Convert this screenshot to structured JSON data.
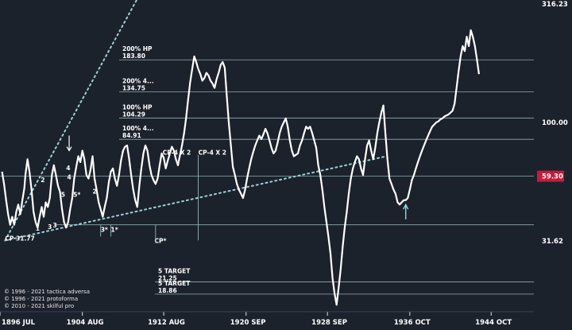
{
  "colors": {
    "background": "#1c222c",
    "price_line": "#ffffff",
    "level_line": "#a7c3c8",
    "trend_line": "#9fcfd6",
    "accent_badge": "#c41c3c",
    "arrow_cyan": "#8fd6e0"
  },
  "chart_data": {
    "type": "line",
    "title": "",
    "xlabel": "",
    "ylabel": "",
    "y_scale": "log",
    "ylim": [
      16,
      316.23
    ],
    "x_range": [
      1896.5,
      1949
    ],
    "x_ticks": [
      {
        "label": "1896 JUL",
        "value": 1896.5
      },
      {
        "label": "1904 AUG",
        "value": 1904.6
      },
      {
        "label": "1912 AUG",
        "value": 1912.6
      },
      {
        "label": "1920 SEP",
        "value": 1920.7
      },
      {
        "label": "1928 SEP",
        "value": 1928.7
      },
      {
        "label": "1936 OCT",
        "value": 1936.8
      },
      {
        "label": "1944 OCT",
        "value": 1944.8
      }
    ],
    "y_ticks": [
      {
        "label": "316.23",
        "value": 316.23
      },
      {
        "label": "100.00",
        "value": 100.0
      },
      {
        "label": "31.62",
        "value": 31.62
      }
    ],
    "current_value": {
      "label": "59.30",
      "value": 59.3
    },
    "levels": [
      {
        "name": "200% HP",
        "value": 183.8,
        "label": "183.80"
      },
      {
        "name": "200% 4...",
        "value": 134.75,
        "label": "134.75"
      },
      {
        "name": "100% HP",
        "value": 104.29,
        "label": "104.29"
      },
      {
        "name": "100% 4...",
        "value": 84.91,
        "label": "84.91"
      },
      {
        "name": "",
        "value": 59.3,
        "label": ""
      },
      {
        "name": "",
        "value": 37.0,
        "label": ""
      },
      {
        "name": "5 TARGET",
        "value": 21.25,
        "label": "21.25"
      },
      {
        "name": "5 TARGET",
        "value": 18.86,
        "label": "18.86"
      }
    ],
    "annotations": [
      {
        "text": "CP 31.77",
        "x": 1897.0,
        "y": 31.77
      },
      {
        "text": "CP*",
        "x": 1911.7,
        "y": 31.0
      },
      {
        "text": "CP-4 X 2",
        "x": 1916.0,
        "y": 73.0
      },
      {
        "text": "CP-4 X 2",
        "x": 1912.5,
        "y": 73.0
      },
      {
        "text": "1",
        "x": 1900.0,
        "y": 35.0
      },
      {
        "text": "2",
        "x": 1900.5,
        "y": 56.0
      },
      {
        "text": "3",
        "x": 1901.2,
        "y": 35.5
      },
      {
        "text": "3",
        "x": 1901.7,
        "y": 36.0
      },
      {
        "text": "4",
        "x": 1903.0,
        "y": 63.0
      },
      {
        "text": "4",
        "x": 1903.1,
        "y": 57.5
      },
      {
        "text": "5",
        "x": 1902.5,
        "y": 48.5
      },
      {
        "text": "5*",
        "x": 1903.7,
        "y": 48.5
      },
      {
        "text": "2",
        "x": 1905.6,
        "y": 50.0
      },
      {
        "text": "3*",
        "x": 1906.4,
        "y": 34.5
      },
      {
        "text": "1*",
        "x": 1907.4,
        "y": 34.5
      }
    ],
    "series": [
      {
        "values": [
          [
            1896.7,
            62
          ],
          [
            1896.9,
            55
          ],
          [
            1897.1,
            47
          ],
          [
            1897.3,
            41
          ],
          [
            1897.5,
            37
          ],
          [
            1897.7,
            40
          ],
          [
            1897.9,
            37
          ],
          [
            1898.1,
            42
          ],
          [
            1898.3,
            45
          ],
          [
            1898.5,
            41
          ],
          [
            1898.7,
            47
          ],
          [
            1898.9,
            53
          ],
          [
            1899.0,
            60
          ],
          [
            1899.2,
            70
          ],
          [
            1899.4,
            62
          ],
          [
            1899.6,
            52
          ],
          [
            1899.8,
            42
          ],
          [
            1900.0,
            38
          ],
          [
            1900.2,
            36
          ],
          [
            1900.4,
            40
          ],
          [
            1900.6,
            44
          ],
          [
            1900.8,
            40
          ],
          [
            1901.0,
            46
          ],
          [
            1901.2,
            44
          ],
          [
            1901.4,
            48
          ],
          [
            1901.6,
            60
          ],
          [
            1901.8,
            66
          ],
          [
            1902.0,
            60
          ],
          [
            1902.2,
            54
          ],
          [
            1902.4,
            51
          ],
          [
            1902.6,
            43
          ],
          [
            1902.8,
            38
          ],
          [
            1903.0,
            36
          ],
          [
            1903.2,
            38
          ],
          [
            1903.4,
            43
          ],
          [
            1903.6,
            48
          ],
          [
            1903.8,
            58
          ],
          [
            1904.0,
            65
          ],
          [
            1904.2,
            72
          ],
          [
            1904.4,
            68
          ],
          [
            1904.6,
            76
          ],
          [
            1904.8,
            70
          ],
          [
            1905.0,
            60
          ],
          [
            1905.2,
            58
          ],
          [
            1905.4,
            63
          ],
          [
            1905.6,
            72
          ],
          [
            1905.8,
            58
          ],
          [
            1906.0,
            52
          ],
          [
            1906.2,
            46
          ],
          [
            1906.4,
            43
          ],
          [
            1906.6,
            40
          ],
          [
            1906.8,
            44
          ],
          [
            1907.0,
            48
          ],
          [
            1907.2,
            56
          ],
          [
            1907.4,
            62
          ],
          [
            1907.6,
            64
          ],
          [
            1907.8,
            58
          ],
          [
            1908.0,
            54
          ],
          [
            1908.2,
            60
          ],
          [
            1908.4,
            69
          ],
          [
            1908.6,
            76
          ],
          [
            1908.8,
            79
          ],
          [
            1909.0,
            80
          ],
          [
            1909.2,
            70
          ],
          [
            1909.4,
            60
          ],
          [
            1909.6,
            52
          ],
          [
            1909.8,
            47
          ],
          [
            1910.0,
            44
          ],
          [
            1910.2,
            54
          ],
          [
            1910.4,
            64
          ],
          [
            1910.6,
            74
          ],
          [
            1910.8,
            80
          ],
          [
            1911.0,
            76
          ],
          [
            1911.2,
            66
          ],
          [
            1911.4,
            60
          ],
          [
            1911.6,
            57
          ],
          [
            1911.8,
            55
          ],
          [
            1912.0,
            58
          ],
          [
            1912.2,
            66
          ],
          [
            1912.4,
            74
          ],
          [
            1912.6,
            71
          ],
          [
            1912.8,
            64
          ],
          [
            1913.0,
            69
          ],
          [
            1913.2,
            74
          ],
          [
            1913.4,
            79
          ],
          [
            1913.6,
            76
          ],
          [
            1913.8,
            70
          ],
          [
            1914.0,
            66
          ],
          [
            1914.2,
            73
          ],
          [
            1914.4,
            80
          ],
          [
            1914.6,
            90
          ],
          [
            1914.8,
            104
          ],
          [
            1915.0,
            125
          ],
          [
            1915.2,
            148
          ],
          [
            1915.4,
            168
          ],
          [
            1915.6,
            190
          ],
          [
            1915.8,
            180
          ],
          [
            1916.0,
            168
          ],
          [
            1916.2,
            160
          ],
          [
            1916.4,
            150
          ],
          [
            1916.6,
            154
          ],
          [
            1916.8,
            162
          ],
          [
            1917.0,
            158
          ],
          [
            1917.2,
            150
          ],
          [
            1917.4,
            146
          ],
          [
            1917.6,
            140
          ],
          [
            1917.8,
            152
          ],
          [
            1918.0,
            162
          ],
          [
            1918.2,
            175
          ],
          [
            1918.4,
            180
          ],
          [
            1918.6,
            170
          ],
          [
            1918.8,
            130
          ],
          [
            1919.0,
            100
          ],
          [
            1919.2,
            80
          ],
          [
            1919.4,
            65
          ],
          [
            1919.6,
            60
          ],
          [
            1919.8,
            55
          ],
          [
            1920.0,
            52
          ],
          [
            1920.2,
            50
          ],
          [
            1920.4,
            48
          ],
          [
            1920.6,
            52
          ],
          [
            1920.8,
            58
          ],
          [
            1921.0,
            64
          ],
          [
            1921.2,
            70
          ],
          [
            1921.4,
            75
          ],
          [
            1921.6,
            80
          ],
          [
            1921.8,
            84
          ],
          [
            1922.0,
            88
          ],
          [
            1922.2,
            85
          ],
          [
            1922.4,
            89
          ],
          [
            1922.6,
            94
          ],
          [
            1922.8,
            90
          ],
          [
            1923.0,
            84
          ],
          [
            1923.2,
            78
          ],
          [
            1923.4,
            74
          ],
          [
            1923.6,
            76
          ],
          [
            1923.8,
            82
          ],
          [
            1924.0,
            90
          ],
          [
            1924.2,
            96
          ],
          [
            1924.4,
            100
          ],
          [
            1924.6,
            104
          ],
          [
            1924.8,
            96
          ],
          [
            1925.0,
            84
          ],
          [
            1925.2,
            76
          ],
          [
            1925.4,
            72
          ],
          [
            1925.6,
            73
          ],
          [
            1925.8,
            74
          ],
          [
            1926.0,
            80
          ],
          [
            1926.2,
            84
          ],
          [
            1926.4,
            90
          ],
          [
            1926.6,
            96
          ],
          [
            1926.8,
            94
          ],
          [
            1927.0,
            96
          ],
          [
            1927.2,
            90
          ],
          [
            1927.4,
            84
          ],
          [
            1927.6,
            78
          ],
          [
            1927.8,
            66
          ],
          [
            1928.0,
            60
          ],
          [
            1928.2,
            52
          ],
          [
            1928.4,
            44
          ],
          [
            1928.6,
            38
          ],
          [
            1928.8,
            33
          ],
          [
            1929.0,
            28
          ],
          [
            1929.2,
            22
          ],
          [
            1929.4,
            19
          ],
          [
            1929.6,
            17
          ],
          [
            1929.8,
            20
          ],
          [
            1930.0,
            24
          ],
          [
            1930.2,
            30
          ],
          [
            1930.4,
            36
          ],
          [
            1930.6,
            42
          ],
          [
            1930.8,
            50
          ],
          [
            1931.0,
            58
          ],
          [
            1931.2,
            64
          ],
          [
            1931.4,
            68
          ],
          [
            1931.6,
            72
          ],
          [
            1931.8,
            70
          ],
          [
            1932.0,
            64
          ],
          [
            1932.2,
            60
          ],
          [
            1932.4,
            70
          ],
          [
            1932.6,
            80
          ],
          [
            1932.8,
            84
          ],
          [
            1933.0,
            76
          ],
          [
            1933.2,
            70
          ],
          [
            1933.4,
            78
          ],
          [
            1933.6,
            90
          ],
          [
            1933.8,
            100
          ],
          [
            1934.0,
            110
          ],
          [
            1934.2,
            118
          ],
          [
            1934.4,
            90
          ],
          [
            1934.6,
            70
          ],
          [
            1934.8,
            58
          ],
          [
            1935.0,
            55
          ],
          [
            1935.2,
            52
          ],
          [
            1935.4,
            50
          ],
          [
            1935.6,
            46
          ],
          [
            1935.8,
            45
          ],
          [
            1936.0,
            46
          ],
          [
            1936.2,
            47
          ],
          [
            1936.4,
            47
          ],
          [
            1936.6,
            48
          ],
          [
            1936.8,
            52
          ],
          [
            1937.0,
            57
          ],
          [
            1937.2,
            60
          ],
          [
            1937.4,
            64
          ],
          [
            1937.6,
            68
          ],
          [
            1937.8,
            72
          ],
          [
            1938.0,
            76
          ],
          [
            1938.2,
            80
          ],
          [
            1938.4,
            84
          ],
          [
            1938.6,
            88
          ],
          [
            1938.8,
            92
          ],
          [
            1939.0,
            96
          ],
          [
            1939.2,
            98
          ],
          [
            1939.4,
            100
          ],
          [
            1939.6,
            101
          ],
          [
            1939.8,
            103
          ],
          [
            1940.0,
            104
          ],
          [
            1940.2,
            106
          ],
          [
            1940.4,
            107
          ],
          [
            1940.6,
            108
          ],
          [
            1940.8,
            110
          ],
          [
            1941.0,
            112
          ],
          [
            1941.2,
            120
          ],
          [
            1941.4,
            140
          ],
          [
            1941.6,
            165
          ],
          [
            1941.8,
            190
          ],
          [
            1942.0,
            210
          ],
          [
            1942.2,
            200
          ],
          [
            1942.4,
            230
          ],
          [
            1942.6,
            210
          ],
          [
            1942.8,
            245
          ],
          [
            1943.0,
            230
          ],
          [
            1943.2,
            210
          ],
          [
            1943.4,
            185
          ],
          [
            1943.6,
            160
          ]
        ]
      }
    ],
    "trendlines": [
      {
        "from": [
          1897.0,
          31.77
        ],
        "to": [
          1911.8,
          460
        ]
      },
      {
        "from": [
          1897.0,
          31.77
        ],
        "to": [
          1934.5,
          72
        ]
      }
    ]
  },
  "copyright": [
    "© 1996 - 2021 tactica adversa",
    "© 1996 - 2021 protoforma",
    "© 2010 - 2021 skilful pro"
  ]
}
